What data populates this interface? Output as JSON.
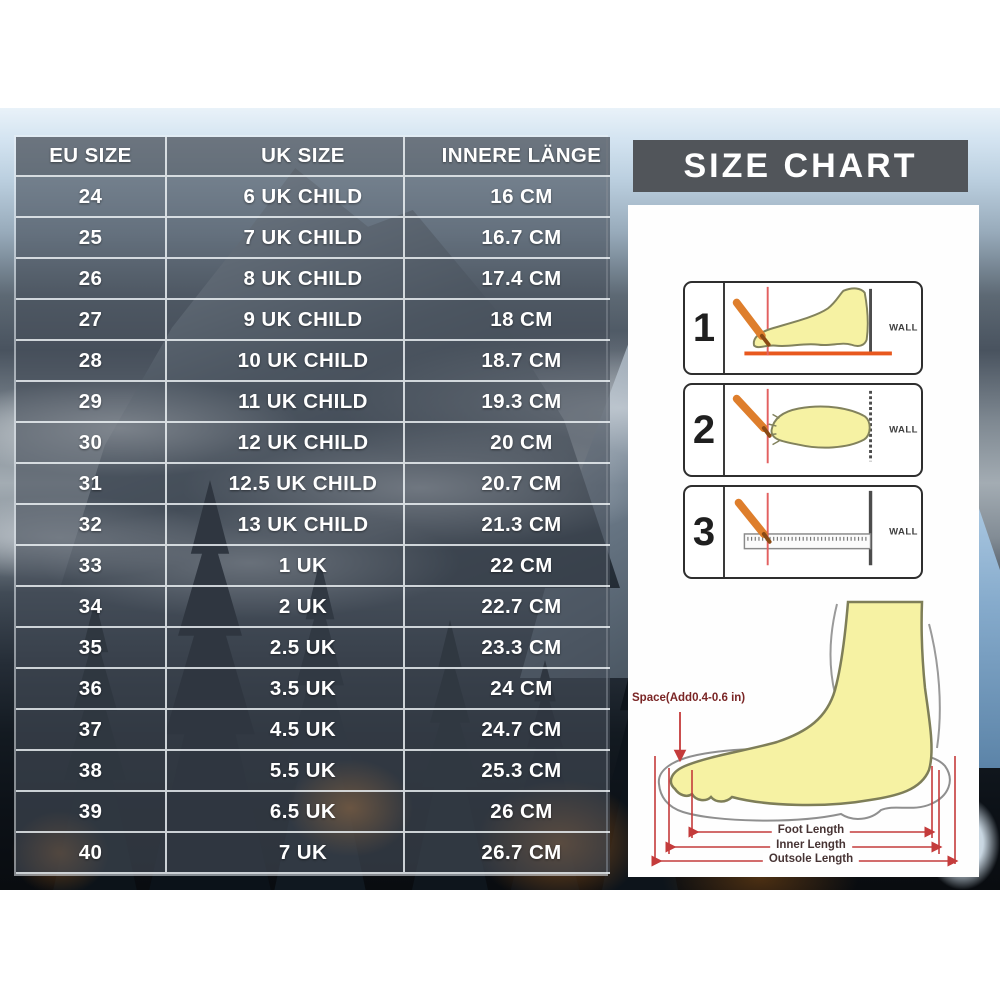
{
  "size_table": {
    "headers": [
      "EU SIZE",
      "UK SIZE",
      "INNERE LÄNGE"
    ],
    "rows": [
      [
        "24",
        "6 UK CHILD",
        "16 CM"
      ],
      [
        "25",
        "7 UK CHILD",
        "16.7 CM"
      ],
      [
        "26",
        "8 UK CHILD",
        "17.4 CM"
      ],
      [
        "27",
        "9 UK CHILD",
        "18 CM"
      ],
      [
        "28",
        "10 UK CHILD",
        "18.7 CM"
      ],
      [
        "29",
        "11 UK CHILD",
        "19.3 CM"
      ],
      [
        "30",
        "12 UK CHILD",
        "20 CM"
      ],
      [
        "31",
        "12.5 UK CHILD",
        "20.7 CM"
      ],
      [
        "32",
        "13 UK CHILD",
        "21.3 CM"
      ],
      [
        "33",
        "1 UK",
        "22 CM"
      ],
      [
        "34",
        "2 UK",
        "22.7 CM"
      ],
      [
        "35",
        "2.5 UK",
        "23.3 CM"
      ],
      [
        "36",
        "3.5 UK",
        "24 CM"
      ],
      [
        "37",
        "4.5 UK",
        "24.7 CM"
      ],
      [
        "38",
        "5.5 UK",
        "25.3 CM"
      ],
      [
        "39",
        "6.5 UK",
        "26 CM"
      ],
      [
        "40",
        "7 UK",
        "26.7 CM"
      ]
    ]
  },
  "size_chart_panel": {
    "title": "SIZE CHART",
    "steps": [
      {
        "number": "1",
        "wall_label": "WALL"
      },
      {
        "number": "2",
        "wall_label": "WALL"
      },
      {
        "number": "3",
        "wall_label": "WALL"
      }
    ],
    "foot_diagram": {
      "space_label": "Space(Add0.4-0.6 in)",
      "measurements": [
        "Foot Length",
        "Inner Length",
        "Outsole Length"
      ]
    }
  },
  "colors": {
    "table_text": "#ffffff",
    "title_bar_bg": "#51555a",
    "measurement_accent": "#c43b3b",
    "foot_fill": "#f6f2a3",
    "pencil_orange": "#de7e2c"
  }
}
